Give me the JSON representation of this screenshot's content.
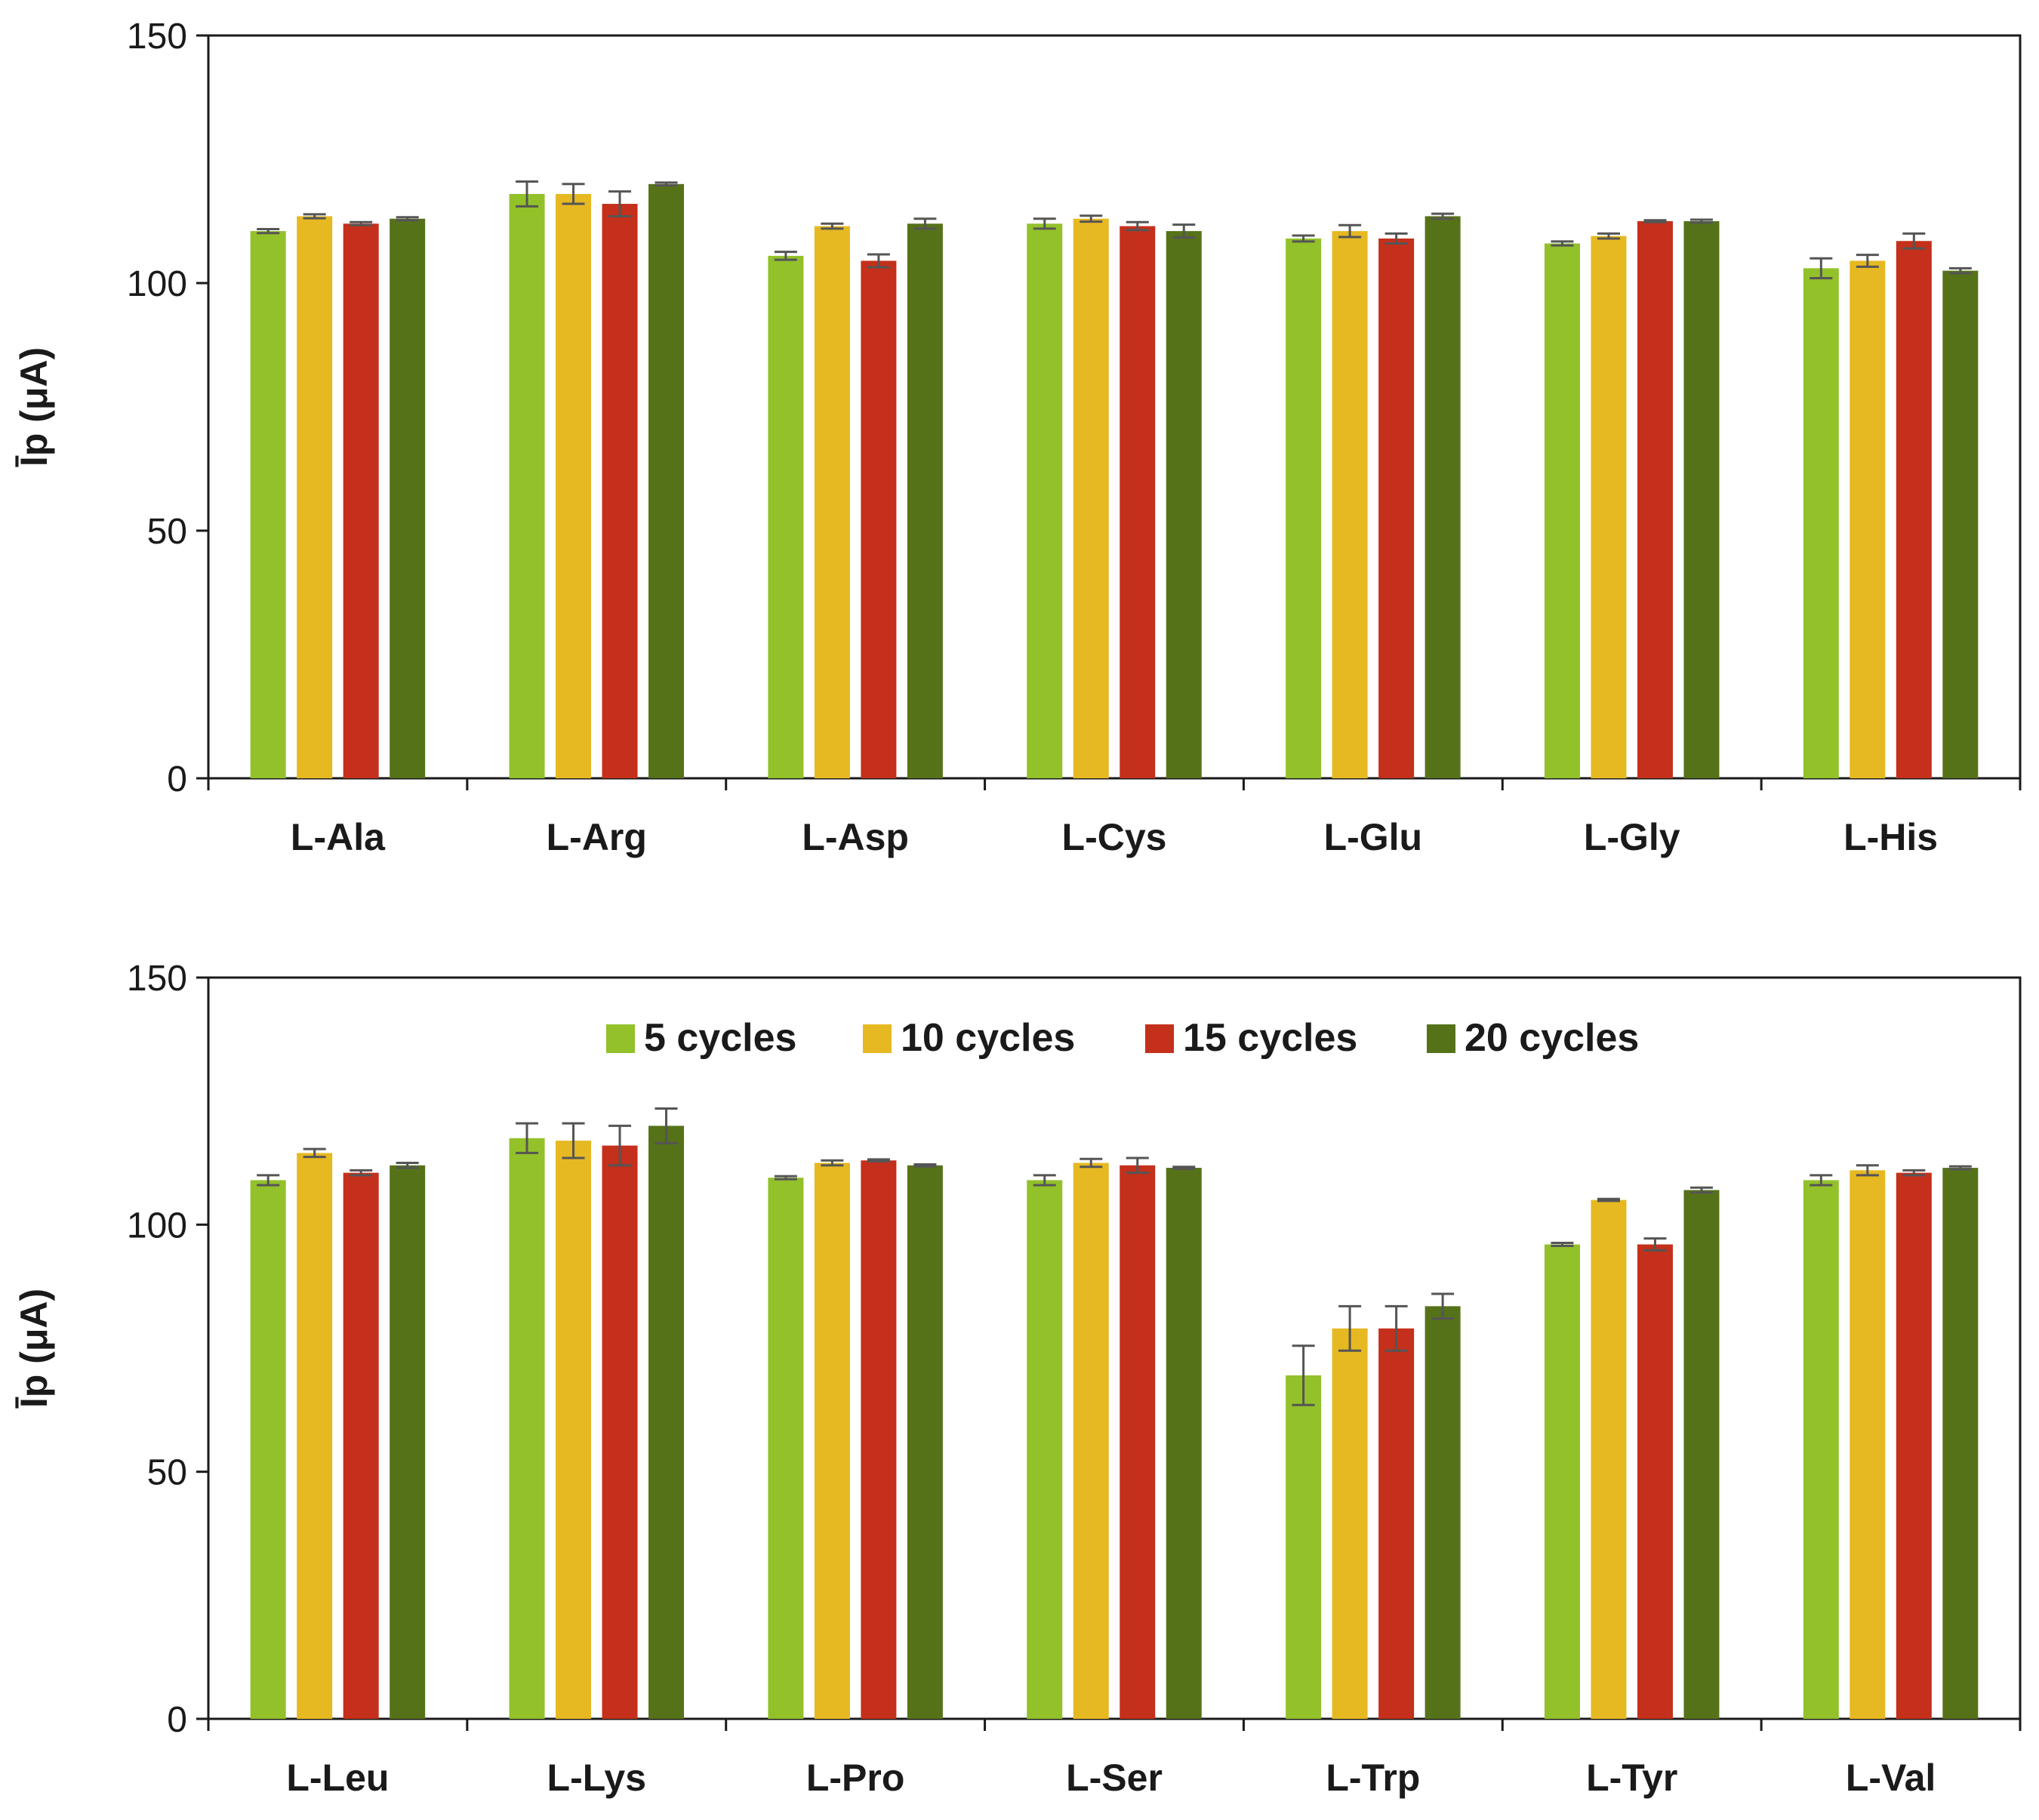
{
  "chart_data": [
    {
      "type": "bar",
      "ylabel": "Īp (μA)",
      "ylim": [
        0,
        150
      ],
      "yticks": [
        0,
        50,
        100,
        150
      ],
      "categories": [
        "L-Ala",
        "L-Arg",
        "L-Asp",
        "L-Cys",
        "L-Glu",
        "L-Gly",
        "L-His"
      ],
      "series": [
        {
          "name": "5 cycles",
          "color": "#92C12A",
          "values": [
            110.5,
            118,
            105.5,
            112,
            109,
            108,
            103
          ],
          "errors": [
            0.4,
            2.5,
            0.8,
            1.0,
            0.6,
            0.4,
            2.0
          ]
        },
        {
          "name": "10 cycles",
          "color": "#E6B922",
          "values": [
            113.5,
            118,
            111.5,
            113,
            110.5,
            109.5,
            104.5
          ],
          "errors": [
            0.4,
            2.0,
            0.5,
            0.6,
            1.2,
            0.5,
            1.2
          ]
        },
        {
          "name": "15 cycles",
          "color": "#C4301B",
          "values": [
            112,
            116,
            104.5,
            111.5,
            109,
            112.5,
            108.5
          ],
          "errors": [
            0.3,
            2.5,
            1.3,
            0.8,
            1.0,
            0.2,
            1.5
          ]
        },
        {
          "name": "20 cycles",
          "color": "#567219",
          "values": [
            113,
            120,
            112,
            110.5,
            113.5,
            112.5,
            102.5
          ],
          "errors": [
            0.3,
            0.3,
            1.0,
            1.3,
            0.5,
            0.3,
            0.5
          ]
        }
      ],
      "legend": "none"
    },
    {
      "type": "bar",
      "ylabel": "Īp (μA)",
      "ylim": [
        0,
        150
      ],
      "yticks": [
        0,
        50,
        100,
        150
      ],
      "categories": [
        "L-Leu",
        "L-Lys",
        "L-Pro",
        "L-Ser",
        "L-Trp",
        "L-Tyr",
        "L-Val"
      ],
      "series": [
        {
          "name": "5 cycles",
          "color": "#92C12A",
          "values": [
            109,
            117.5,
            109.5,
            109,
            69.5,
            96,
            109
          ],
          "errors": [
            1.0,
            3.0,
            0.3,
            1.0,
            6.0,
            0.3,
            1.0
          ]
        },
        {
          "name": "10 cycles",
          "color": "#E6B922",
          "values": [
            114.5,
            117,
            112.5,
            112.5,
            79,
            105,
            111
          ],
          "errors": [
            0.8,
            3.5,
            0.5,
            0.8,
            4.5,
            0.2,
            1.0
          ]
        },
        {
          "name": "15 cycles",
          "color": "#C4301B",
          "values": [
            110.5,
            116,
            113,
            112,
            79,
            96,
            110.5
          ],
          "errors": [
            0.5,
            4.0,
            0.2,
            1.5,
            4.5,
            1.2,
            0.5
          ]
        },
        {
          "name": "20 cycles",
          "color": "#567219",
          "values": [
            112,
            120,
            112,
            111.5,
            83.5,
            107,
            111.5
          ],
          "errors": [
            0.5,
            3.5,
            0.2,
            0.2,
            2.5,
            0.5,
            0.3
          ]
        }
      ],
      "legend": "top-center"
    }
  ]
}
